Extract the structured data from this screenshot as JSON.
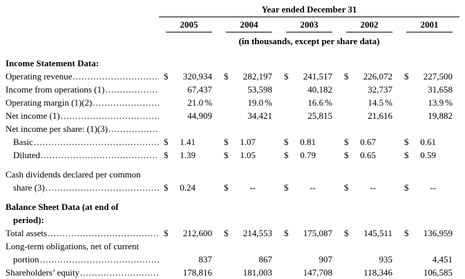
{
  "header": {
    "title": "Year ended December 31",
    "years": [
      "2005",
      "2004",
      "2003",
      "2002",
      "2001"
    ],
    "subtitle": "(in thousands, except per share data)"
  },
  "rows": [
    {
      "type": "section",
      "label": "Income Statement Data:"
    },
    {
      "type": "data",
      "label": "Operating revenue",
      "leader": true,
      "dollar": true,
      "values": [
        "320,934",
        "282,197",
        "241,517",
        "226,072",
        "227,500"
      ]
    },
    {
      "type": "data",
      "label": "Income from operations (1)",
      "leader": true,
      "values": [
        "67,437",
        "53,598",
        "40,182",
        "32,737",
        "31,658"
      ]
    },
    {
      "type": "data",
      "label": "Operating margin (1)(2)",
      "leader": true,
      "suffix": "%",
      "values": [
        "21.0",
        "19.0",
        "16.6",
        "14.5",
        "13.9"
      ]
    },
    {
      "type": "data",
      "label": "Net income (1)",
      "leader": true,
      "values": [
        "44,909",
        "34,421",
        "25,815",
        "21,616",
        "19,882"
      ]
    },
    {
      "type": "data",
      "label": "Net income per share:  (1)(3)",
      "leader": true
    },
    {
      "type": "data",
      "label": "Basic",
      "indent": 1,
      "leader": true,
      "dollar": true,
      "small": true,
      "values": [
        "1.41",
        "1.07",
        "0.81",
        "0.67",
        "0.61"
      ]
    },
    {
      "type": "data",
      "label": "Diluted",
      "indent": 1,
      "leader": true,
      "dollar": true,
      "small": true,
      "values": [
        "1.39",
        "1.05",
        "0.79",
        "0.65",
        "0.59"
      ]
    },
    {
      "type": "spacer"
    },
    {
      "type": "data",
      "label": "Cash dividends declared per common",
      "label2": "share (3)",
      "indent2": 1,
      "leader": true,
      "dollar": true,
      "small": true,
      "values": [
        "0.24",
        "--",
        "--",
        "--",
        "--"
      ]
    },
    {
      "type": "spacer"
    },
    {
      "type": "section",
      "label": "Balance Sheet Data (at end of",
      "label2": "period):",
      "indent2": 1
    },
    {
      "type": "data",
      "label": "Total assets",
      "leader": true,
      "dollar": true,
      "values": [
        "212,600",
        "214,553",
        "175,087",
        "145,511",
        "136,959"
      ]
    },
    {
      "type": "data",
      "label": "Long-term obligations, net of current",
      "label2": "portion",
      "indent2": 1,
      "leader": true,
      "values": [
        "837",
        "867",
        "907",
        "935",
        "4,451"
      ]
    },
    {
      "type": "data",
      "label": "Shareholders’ equity",
      "leader": true,
      "values": [
        "178,816",
        "181,003",
        "147,708",
        "118,346",
        "106,585"
      ]
    }
  ]
}
